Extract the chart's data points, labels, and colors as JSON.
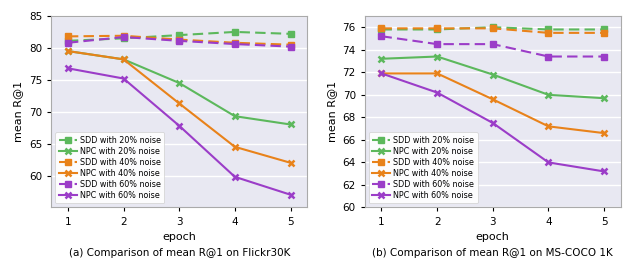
{
  "epochs": [
    1,
    2,
    3,
    4,
    5
  ],
  "flickr": {
    "ylim": [
      55,
      85
    ],
    "yticks": [
      60,
      65,
      70,
      75,
      80,
      85
    ],
    "ylabel": "mean R@1",
    "xlabel": "epoch",
    "caption": "(a) Comparison of mean R@1 on Flickr30K",
    "series": {
      "SDD_20": {
        "values": [
          81.1,
          81.5,
          82.0,
          82.5,
          82.2
        ],
        "color": "#5cb85c",
        "linestyle": "--",
        "marker": "s",
        "label": "SDD with 20% noise"
      },
      "NPC_20": {
        "values": [
          79.5,
          78.2,
          74.5,
          69.3,
          68.0
        ],
        "color": "#5cb85c",
        "linestyle": "-",
        "marker": "x",
        "label": "NPC with 20% noise"
      },
      "SDD_40": {
        "values": [
          81.8,
          81.9,
          81.3,
          80.8,
          80.5
        ],
        "color": "#e8821a",
        "linestyle": "--",
        "marker": "s",
        "label": "SDD with 40% noise"
      },
      "NPC_40": {
        "values": [
          79.5,
          78.2,
          71.3,
          64.5,
          62.0
        ],
        "color": "#e8821a",
        "linestyle": "-",
        "marker": "x",
        "label": "NPC with 40% noise"
      },
      "SDD_60": {
        "values": [
          80.8,
          81.7,
          81.1,
          80.6,
          80.2
        ],
        "color": "#9b3dc8",
        "linestyle": "--",
        "marker": "s",
        "label": "SDD with 60% noise"
      },
      "NPC_60": {
        "values": [
          76.8,
          75.2,
          67.8,
          59.8,
          57.0
        ],
        "color": "#9b3dc8",
        "linestyle": "-",
        "marker": "x",
        "label": "NPC with 60% noise"
      }
    }
  },
  "coco": {
    "ylim": [
      60,
      77
    ],
    "yticks": [
      60,
      62,
      64,
      66,
      68,
      70,
      72,
      74,
      76
    ],
    "ylabel": "mean R@1",
    "xlabel": "epoch",
    "caption": "(b) Comparison of mean R@1 on MS-COCO 1K",
    "series": {
      "SDD_20": {
        "values": [
          75.8,
          75.8,
          76.0,
          75.8,
          75.8
        ],
        "color": "#5cb85c",
        "linestyle": "--",
        "marker": "s",
        "label": "SDD with 20% noise"
      },
      "NPC_20": {
        "values": [
          73.2,
          73.4,
          71.8,
          70.0,
          69.7
        ],
        "color": "#5cb85c",
        "linestyle": "-",
        "marker": "x",
        "label": "NPC with 20% noise"
      },
      "SDD_40": {
        "values": [
          75.9,
          75.9,
          75.9,
          75.5,
          75.5
        ],
        "color": "#e8821a",
        "linestyle": "--",
        "marker": "s",
        "label": "SDD with 40% noise"
      },
      "NPC_40": {
        "values": [
          71.9,
          71.9,
          69.6,
          67.2,
          66.6
        ],
        "color": "#e8821a",
        "linestyle": "-",
        "marker": "x",
        "label": "NPC with 40% noise"
      },
      "SDD_60": {
        "values": [
          75.2,
          74.5,
          74.5,
          73.4,
          73.4
        ],
        "color": "#9b3dc8",
        "linestyle": "--",
        "marker": "s",
        "label": "SDD with 60% noise"
      },
      "NPC_60": {
        "values": [
          71.9,
          70.2,
          67.5,
          64.0,
          63.2
        ],
        "color": "#9b3dc8",
        "linestyle": "-",
        "marker": "x",
        "label": "NPC with 60% noise"
      }
    }
  },
  "bg_color": "#e8e8f2",
  "grid_color": "#ffffff",
  "legend_order": [
    "SDD_20",
    "NPC_20",
    "SDD_40",
    "NPC_40",
    "SDD_60",
    "NPC_60"
  ]
}
